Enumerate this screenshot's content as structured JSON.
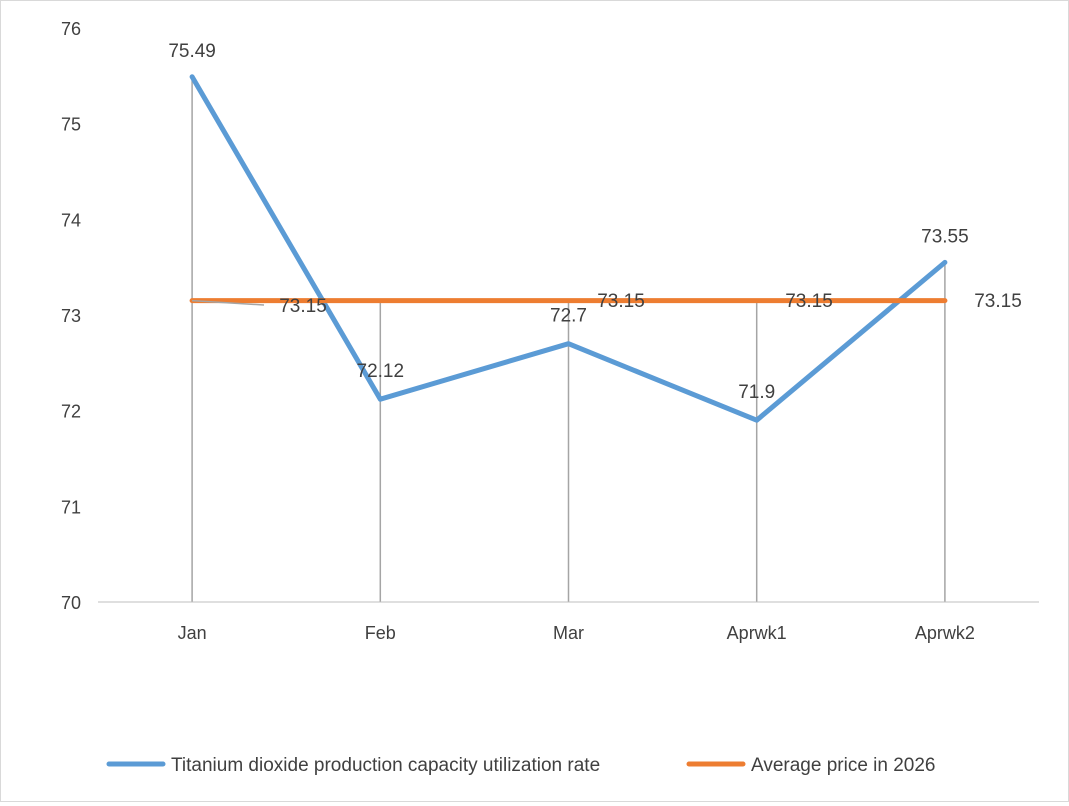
{
  "chart_data": {
    "type": "line",
    "title": "",
    "xlabel": "",
    "ylabel": "",
    "categories": [
      "Jan",
      "Feb",
      "Mar",
      "Aprwk1",
      "Aprwk2"
    ],
    "ylim": [
      70,
      76
    ],
    "yticks": [
      "70",
      "71",
      "72",
      "73",
      "74",
      "75",
      "76"
    ],
    "grid": false,
    "drop_lines": true,
    "legend_position": "bottom",
    "series": [
      {
        "name": "Titanium dioxide production capacity utilization rate",
        "color": "#5B9BD5",
        "values": [
          75.49,
          72.12,
          72.7,
          71.9,
          73.55
        ],
        "labels": [
          "75.49",
          "72.12",
          "72.7",
          "71.9",
          "73.55"
        ]
      },
      {
        "name": "Average price in 2026",
        "color": "#ED7D31",
        "values": [
          73.15,
          73.15,
          73.15,
          73.15,
          73.15
        ],
        "labels": [
          "73.15",
          "73.15",
          "73.15",
          "73.15",
          "73.15"
        ]
      }
    ]
  }
}
